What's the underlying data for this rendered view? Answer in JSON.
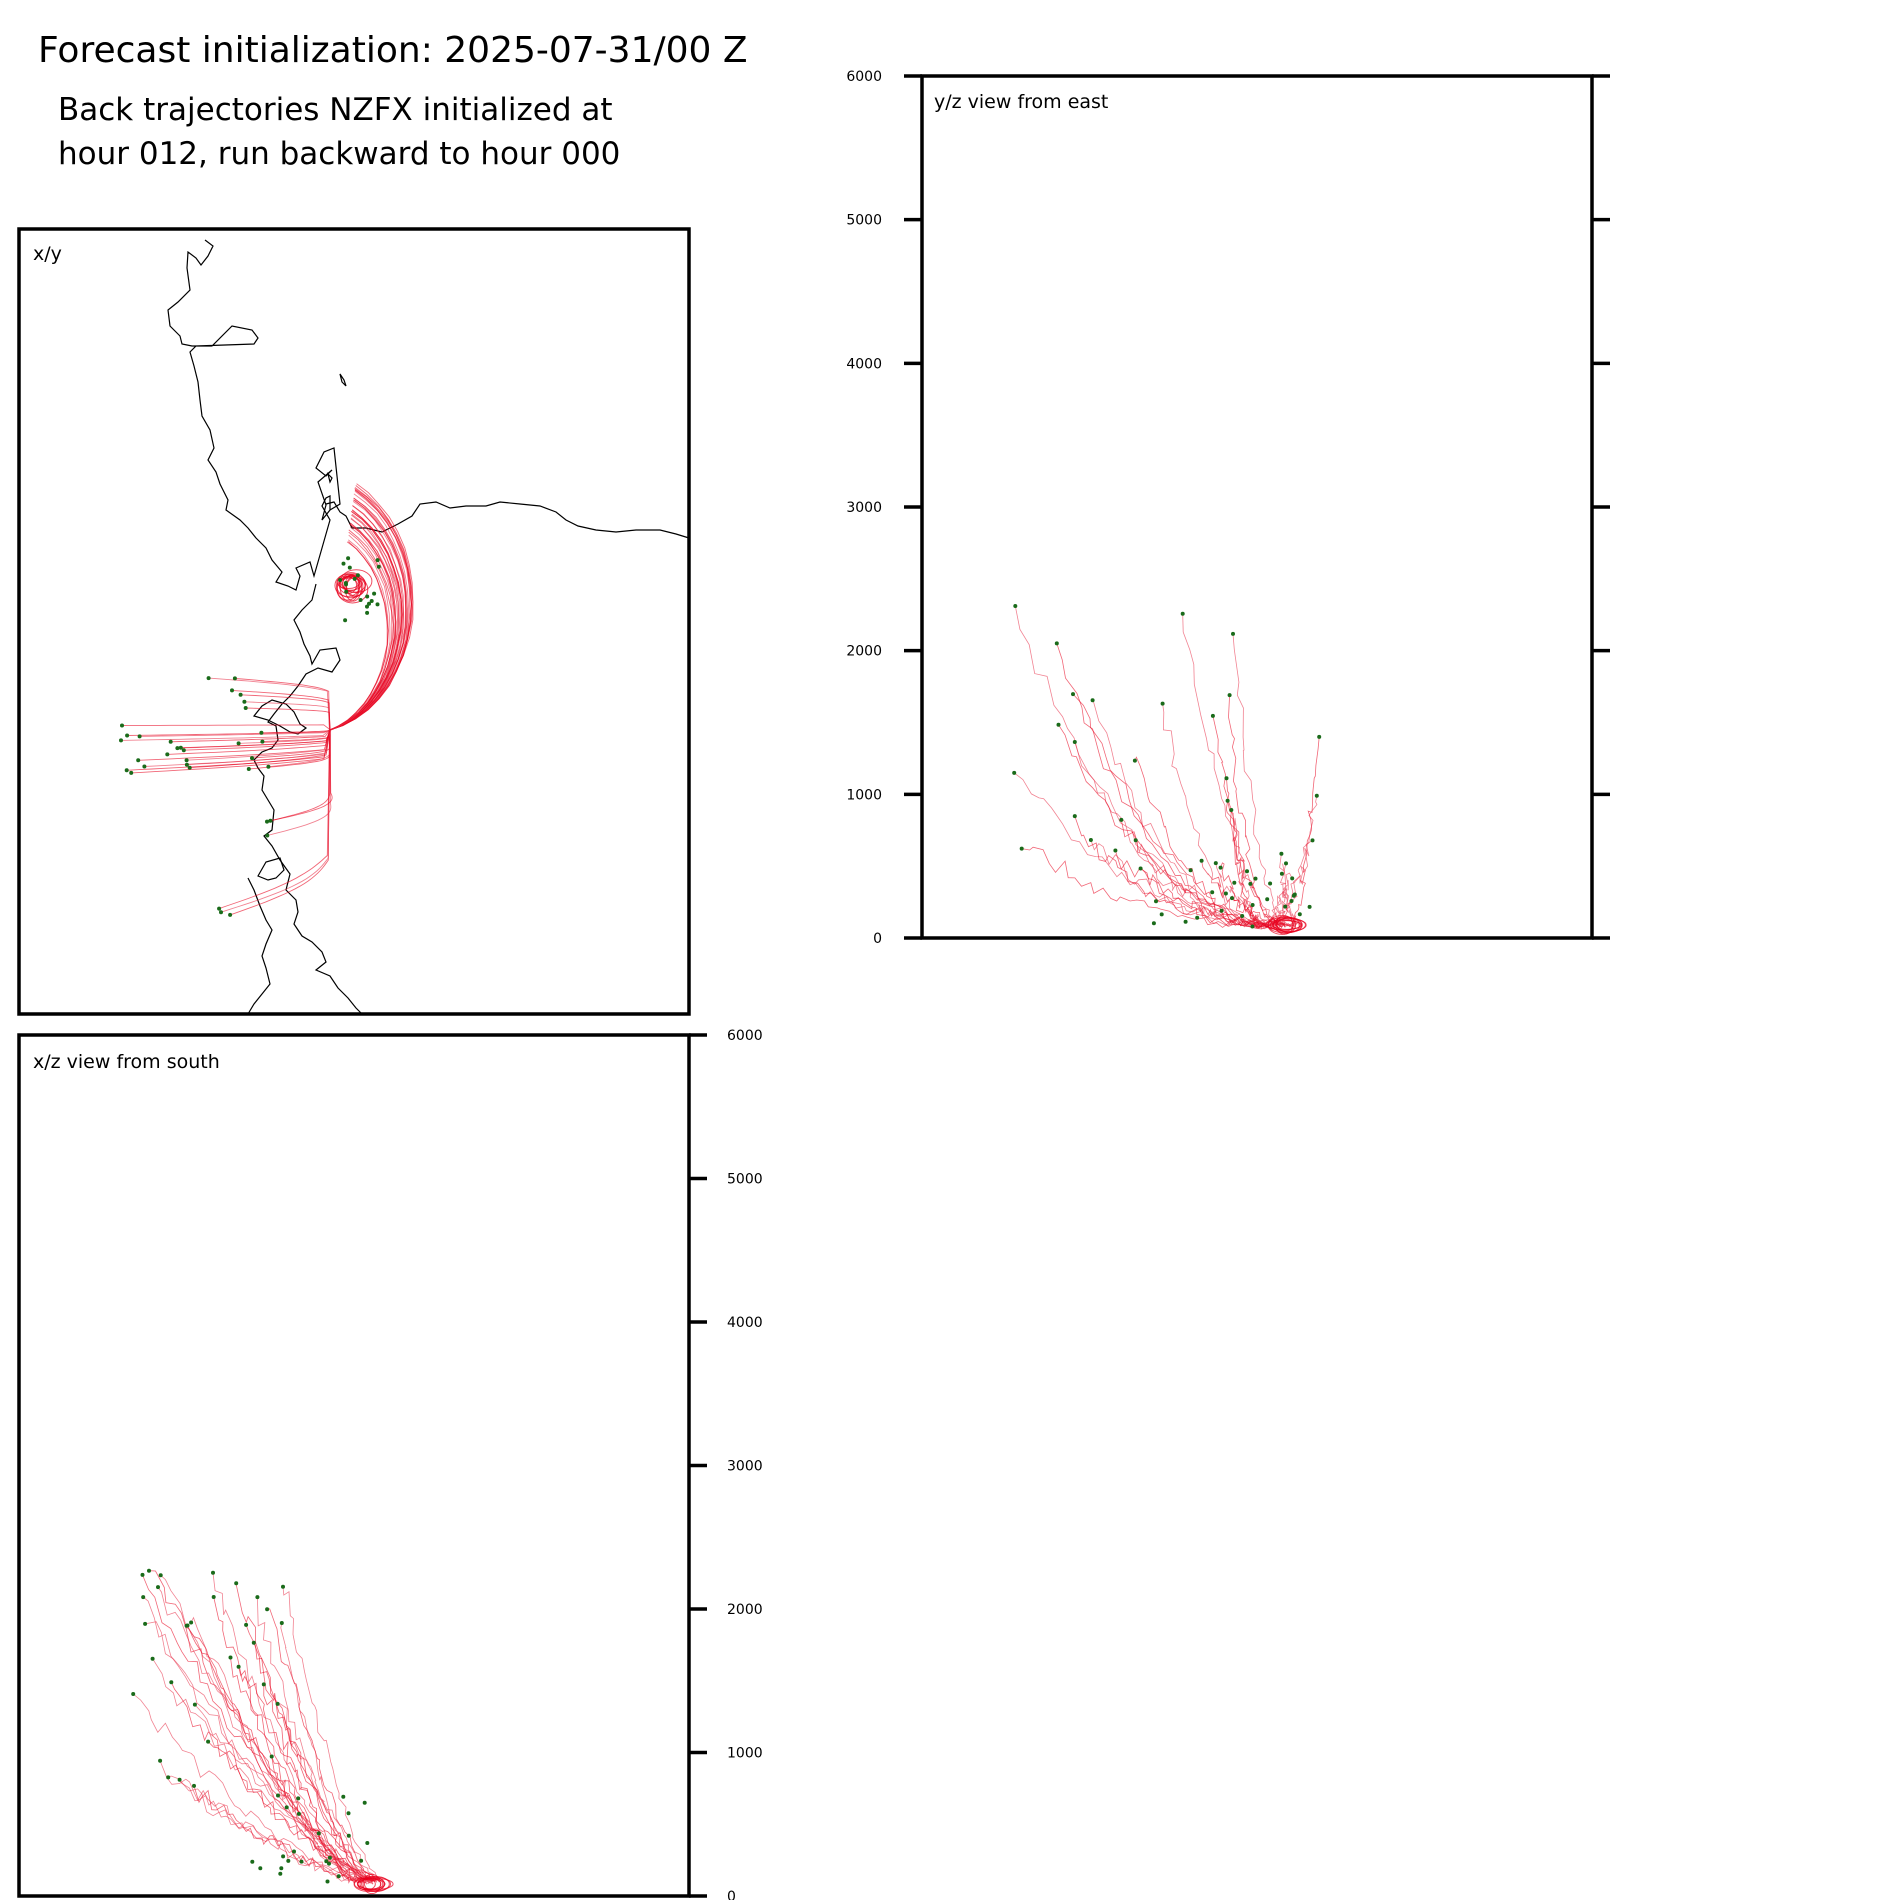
{
  "header": {
    "title": "Forecast initialization: 2025-07-31/00 Z",
    "subtitle_line1": "Back trajectories NZFX initialized at",
    "subtitle_line2": "hour 012, run backward to hour 000"
  },
  "colors": {
    "trajectory": "#e8304a",
    "trajectory_dense": "#e8001c",
    "marker": "#1a6b1a",
    "coastline": "#000000",
    "frame": "#000000"
  },
  "chart_data": [
    {
      "type": "line",
      "title": "x/y",
      "description_shown": "map view with coastline",
      "xlabel": "",
      "ylabel": "",
      "grid": false,
      "series": []
    },
    {
      "type": "line",
      "title": "y/z view from east",
      "xlabel": "",
      "ylabel": "",
      "ylim": [
        0,
        6000
      ],
      "yticks": [
        "0",
        "1000",
        "2000",
        "3000",
        "4000",
        "5000",
        "6000"
      ],
      "grid": false,
      "series": []
    },
    {
      "type": "line",
      "title": "x/z view from south",
      "xlabel": "",
      "ylabel": "",
      "ylim": [
        0,
        6000
      ],
      "yticks": [
        "0",
        "1000",
        "2000",
        "3000",
        "4000",
        "5000",
        "6000"
      ],
      "grid": false,
      "series": []
    }
  ]
}
